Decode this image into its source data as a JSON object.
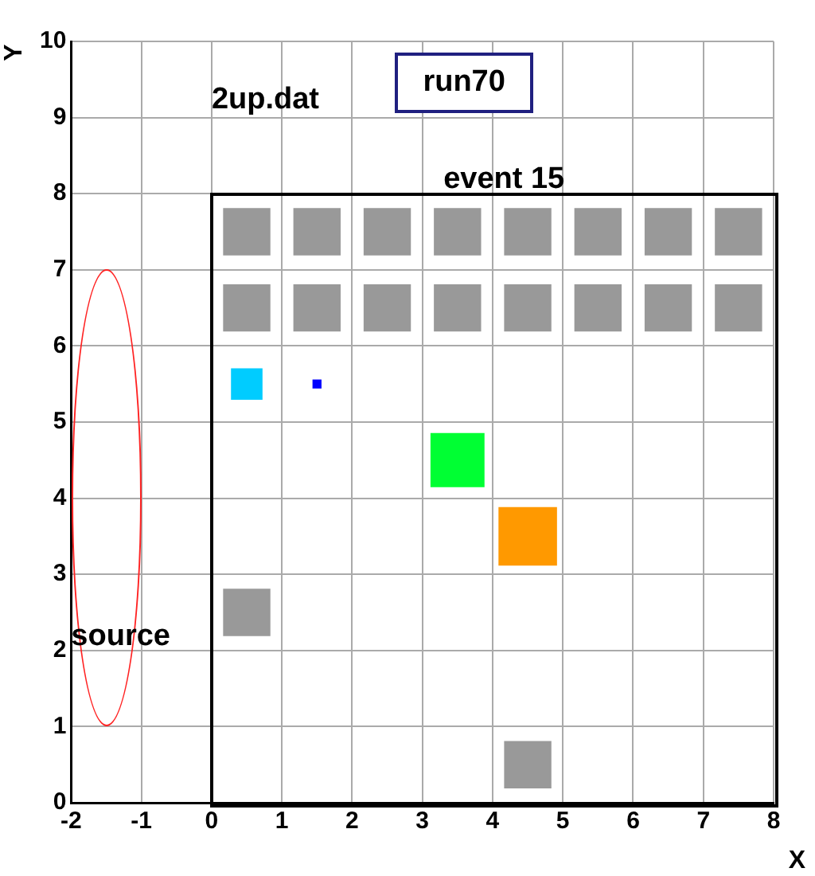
{
  "chart_data": {
    "type": "scatter",
    "title": "run70",
    "xlabel": "X",
    "ylabel": "Y",
    "annotations": [
      "2up.dat",
      "event 15",
      "source"
    ],
    "xlim": [
      -2,
      8
    ],
    "ylim": [
      0,
      10
    ],
    "xticks": [
      -2,
      -1,
      0,
      1,
      2,
      3,
      4,
      5,
      6,
      7,
      8
    ],
    "yticks": [
      0,
      1,
      2,
      3,
      4,
      5,
      6,
      7,
      8,
      9,
      10
    ],
    "grid": true,
    "marker": "square",
    "series": [
      {
        "color": "#999999",
        "x": [
          0.5,
          1.5,
          2.5,
          3.5,
          4.5,
          5.5,
          6.5,
          7.5,
          0.5,
          1.5,
          2.5,
          3.5,
          4.5,
          5.5,
          6.5,
          7.5,
          0.5,
          4.5
        ],
        "values": [
          7.5,
          7.5,
          7.5,
          7.5,
          7.5,
          7.5,
          7.5,
          7.5,
          6.5,
          6.5,
          6.5,
          6.5,
          6.5,
          6.5,
          6.5,
          6.5,
          2.5,
          0.5
        ]
      },
      {
        "color": "#00ccff",
        "x": [
          0.5
        ],
        "values": [
          5.5
        ]
      },
      {
        "color": "#0000ff",
        "x": [
          1.5
        ],
        "values": [
          5.5
        ]
      },
      {
        "color": "#00ff33",
        "x": [
          3.5
        ],
        "values": [
          4.5
        ]
      },
      {
        "color": "#ff9900",
        "x": [
          4.5
        ],
        "values": [
          3.5
        ]
      }
    ]
  }
}
